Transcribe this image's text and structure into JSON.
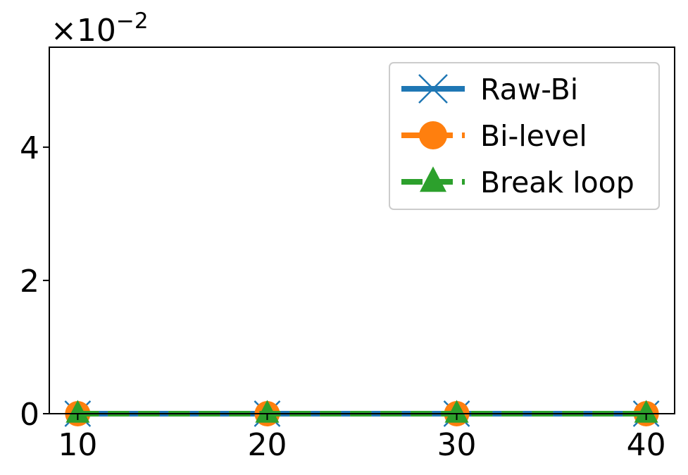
{
  "chart_data": {
    "type": "line",
    "x": [
      10,
      20,
      30,
      40
    ],
    "xticks": [
      "10",
      "20",
      "30",
      "40"
    ],
    "yticks": [
      {
        "value": 0,
        "label": "0"
      },
      {
        "value": 0.02,
        "label": "2"
      },
      {
        "value": 0.04,
        "label": "4"
      }
    ],
    "xlim": [
      8.5,
      41.5
    ],
    "ylim": [
      0,
      0.055
    ],
    "offset_text": {
      "base": "×10",
      "exponent": "−2"
    },
    "xlabel": "",
    "ylabel": "",
    "grid": false,
    "legend_position": "top-right",
    "series": [
      {
        "name": "Raw-Bi",
        "values": [
          0,
          0,
          0,
          0
        ],
        "color": "#1f77b4",
        "marker": "x",
        "dash": "solid"
      },
      {
        "name": "Bi-level",
        "values": [
          0,
          0,
          0,
          0
        ],
        "color": "#ff7f0e",
        "marker": "circle",
        "dash": "dashed"
      },
      {
        "name": "Break loop",
        "values": [
          0,
          0,
          0,
          0
        ],
        "color": "#2ca02c",
        "marker": "triangle",
        "dash": "dashed"
      }
    ]
  }
}
